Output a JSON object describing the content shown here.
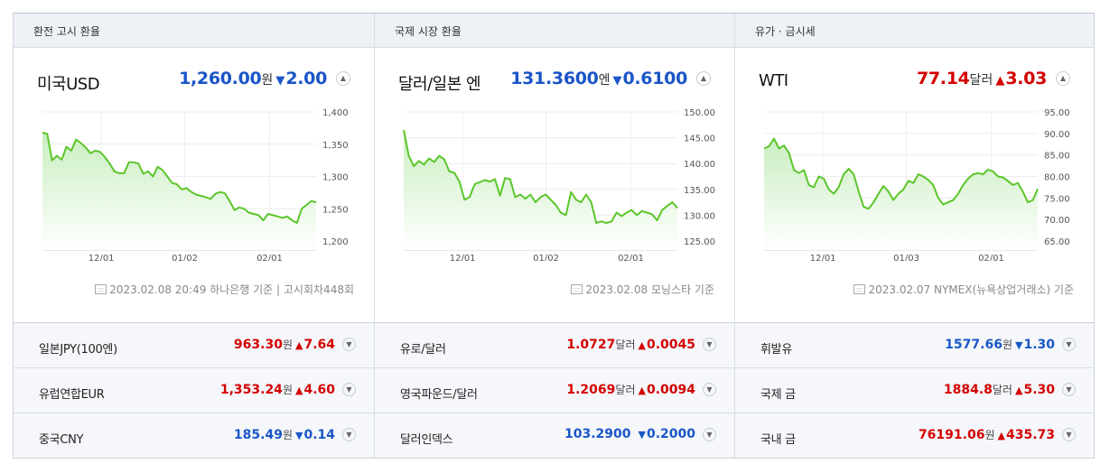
{
  "columns": [
    {
      "tab": "환전 고시 환율",
      "main": {
        "name": "미국USD",
        "value": "1,260.00",
        "unit": "원",
        "direction": "down",
        "arrow": "▼",
        "change": "2.00"
      },
      "source": "2023.02.08 20:49 하나은행 기준 | 고시회차448회",
      "chart_data": {
        "type": "area",
        "x_ticks": [
          "12/01",
          "01/02",
          "02/01"
        ],
        "y_ticks": [
          "1,400",
          "1,350",
          "1,300",
          "1,250",
          "1,200"
        ],
        "ylim": [
          1200,
          1400
        ],
        "values": [
          1368,
          1366,
          1325,
          1332,
          1326,
          1346,
          1340,
          1357,
          1352,
          1345,
          1336,
          1340,
          1338,
          1330,
          1320,
          1308,
          1305,
          1305,
          1322,
          1322,
          1320,
          1304,
          1308,
          1300,
          1315,
          1310,
          1300,
          1290,
          1288,
          1280,
          1282,
          1276,
          1272,
          1270,
          1268,
          1265,
          1273,
          1276,
          1274,
          1262,
          1248,
          1252,
          1250,
          1244,
          1242,
          1240,
          1232,
          1242,
          1240,
          1238,
          1236,
          1238,
          1232,
          1228,
          1250,
          1256,
          1262,
          1260
        ]
      },
      "rows": [
        {
          "name": "일본JPY(100엔)",
          "value": "963.30",
          "unit": "원",
          "direction": "up",
          "arrow": "▲",
          "change": "7.64"
        },
        {
          "name": "유럽연합EUR",
          "value": "1,353.24",
          "unit": "원",
          "direction": "up",
          "arrow": "▲",
          "change": "4.60"
        },
        {
          "name": "중국CNY",
          "value": "185.49",
          "unit": "원",
          "direction": "down",
          "arrow": "▼",
          "change": "0.14"
        }
      ]
    },
    {
      "tab": "국제 시장 환율",
      "main": {
        "name": "달러/일본 엔",
        "value": "131.3600",
        "unit": "엔",
        "direction": "down",
        "arrow": "▼",
        "change": "0.6100"
      },
      "source": "2023.02.08 모닝스타 기준",
      "chart_data": {
        "type": "area",
        "x_ticks": [
          "12/01",
          "01/02",
          "02/01"
        ],
        "y_ticks": [
          "150.00",
          "145.00",
          "140.00",
          "135.00",
          "130.00",
          "125.00"
        ],
        "ylim": [
          125,
          150
        ],
        "values": [
          146.5,
          141.5,
          139.5,
          140.5,
          139.8,
          141.0,
          140.3,
          141.5,
          140.8,
          138.5,
          138.2,
          136.5,
          133.0,
          133.5,
          136.0,
          136.4,
          136.8,
          136.5,
          137.0,
          133.8,
          137.2,
          137.0,
          133.5,
          134.0,
          133.2,
          134.0,
          132.5,
          133.5,
          134.0,
          133.0,
          132.0,
          130.5,
          130.0,
          134.5,
          133.0,
          132.5,
          134.0,
          132.5,
          128.5,
          128.8,
          128.5,
          128.8,
          130.5,
          129.8,
          130.5,
          131.0,
          130.0,
          130.8,
          130.5,
          130.2,
          129.0,
          131.0,
          131.8,
          132.5,
          131.4
        ]
      },
      "rows": [
        {
          "name": "유로/달러",
          "value": "1.0727",
          "unit": "달러",
          "direction": "up",
          "arrow": "▲",
          "change": "0.0045"
        },
        {
          "name": "영국파운드/달러",
          "value": "1.2069",
          "unit": "달러",
          "direction": "up",
          "arrow": "▲",
          "change": "0.0094"
        },
        {
          "name": "달러인덱스",
          "value": "103.2900",
          "unit": "",
          "direction": "down",
          "arrow": "▼",
          "change": "0.2000"
        }
      ]
    },
    {
      "tab": "유가 · 금시세",
      "main": {
        "name": "WTI",
        "value": "77.14",
        "unit": "달러",
        "direction": "up",
        "arrow": "▲",
        "change": "3.03"
      },
      "source": "2023.02.07 NYMEX(뉴욕상업거래소) 기준",
      "chart_data": {
        "type": "area",
        "x_ticks": [
          "12/01",
          "01/03",
          "02/01"
        ],
        "y_ticks": [
          "95.00",
          "90.00",
          "85.00",
          "80.00",
          "75.00",
          "70.00",
          "65.00"
        ],
        "ylim": [
          65,
          95
        ],
        "values": [
          86.5,
          87.0,
          88.8,
          86.5,
          87.2,
          85.5,
          81.5,
          80.8,
          81.5,
          78.0,
          77.5,
          80.0,
          79.5,
          77.0,
          76.0,
          77.5,
          80.5,
          81.8,
          80.5,
          76.5,
          73.0,
          72.5,
          74.0,
          76.0,
          77.8,
          76.5,
          74.5,
          76.0,
          77.0,
          79.0,
          78.5,
          80.5,
          80.0,
          79.2,
          78.0,
          75.0,
          73.5,
          74.0,
          74.5,
          76.0,
          78.0,
          79.5,
          80.5,
          80.8,
          80.5,
          81.6,
          81.2,
          80.0,
          79.8,
          79.0,
          78.0,
          78.5,
          76.5,
          74.0,
          74.5,
          77.1
        ]
      },
      "rows": [
        {
          "name": "휘발유",
          "value": "1577.66",
          "unit": "원",
          "direction": "down",
          "arrow": "▼",
          "change": "1.30"
        },
        {
          "name": "국제 금",
          "value": "1884.8",
          "unit": "달러",
          "direction": "up",
          "arrow": "▲",
          "change": "5.30"
        },
        {
          "name": "국내 금",
          "value": "76191.06",
          "unit": "원",
          "direction": "up",
          "arrow": "▲",
          "change": "435.73"
        }
      ]
    }
  ],
  "colors": {
    "up": "#d40000",
    "down": "#1a56c8",
    "line": "#5cc62b",
    "fill_top": "#c9eec0",
    "fill_bottom": "#ffffff"
  }
}
